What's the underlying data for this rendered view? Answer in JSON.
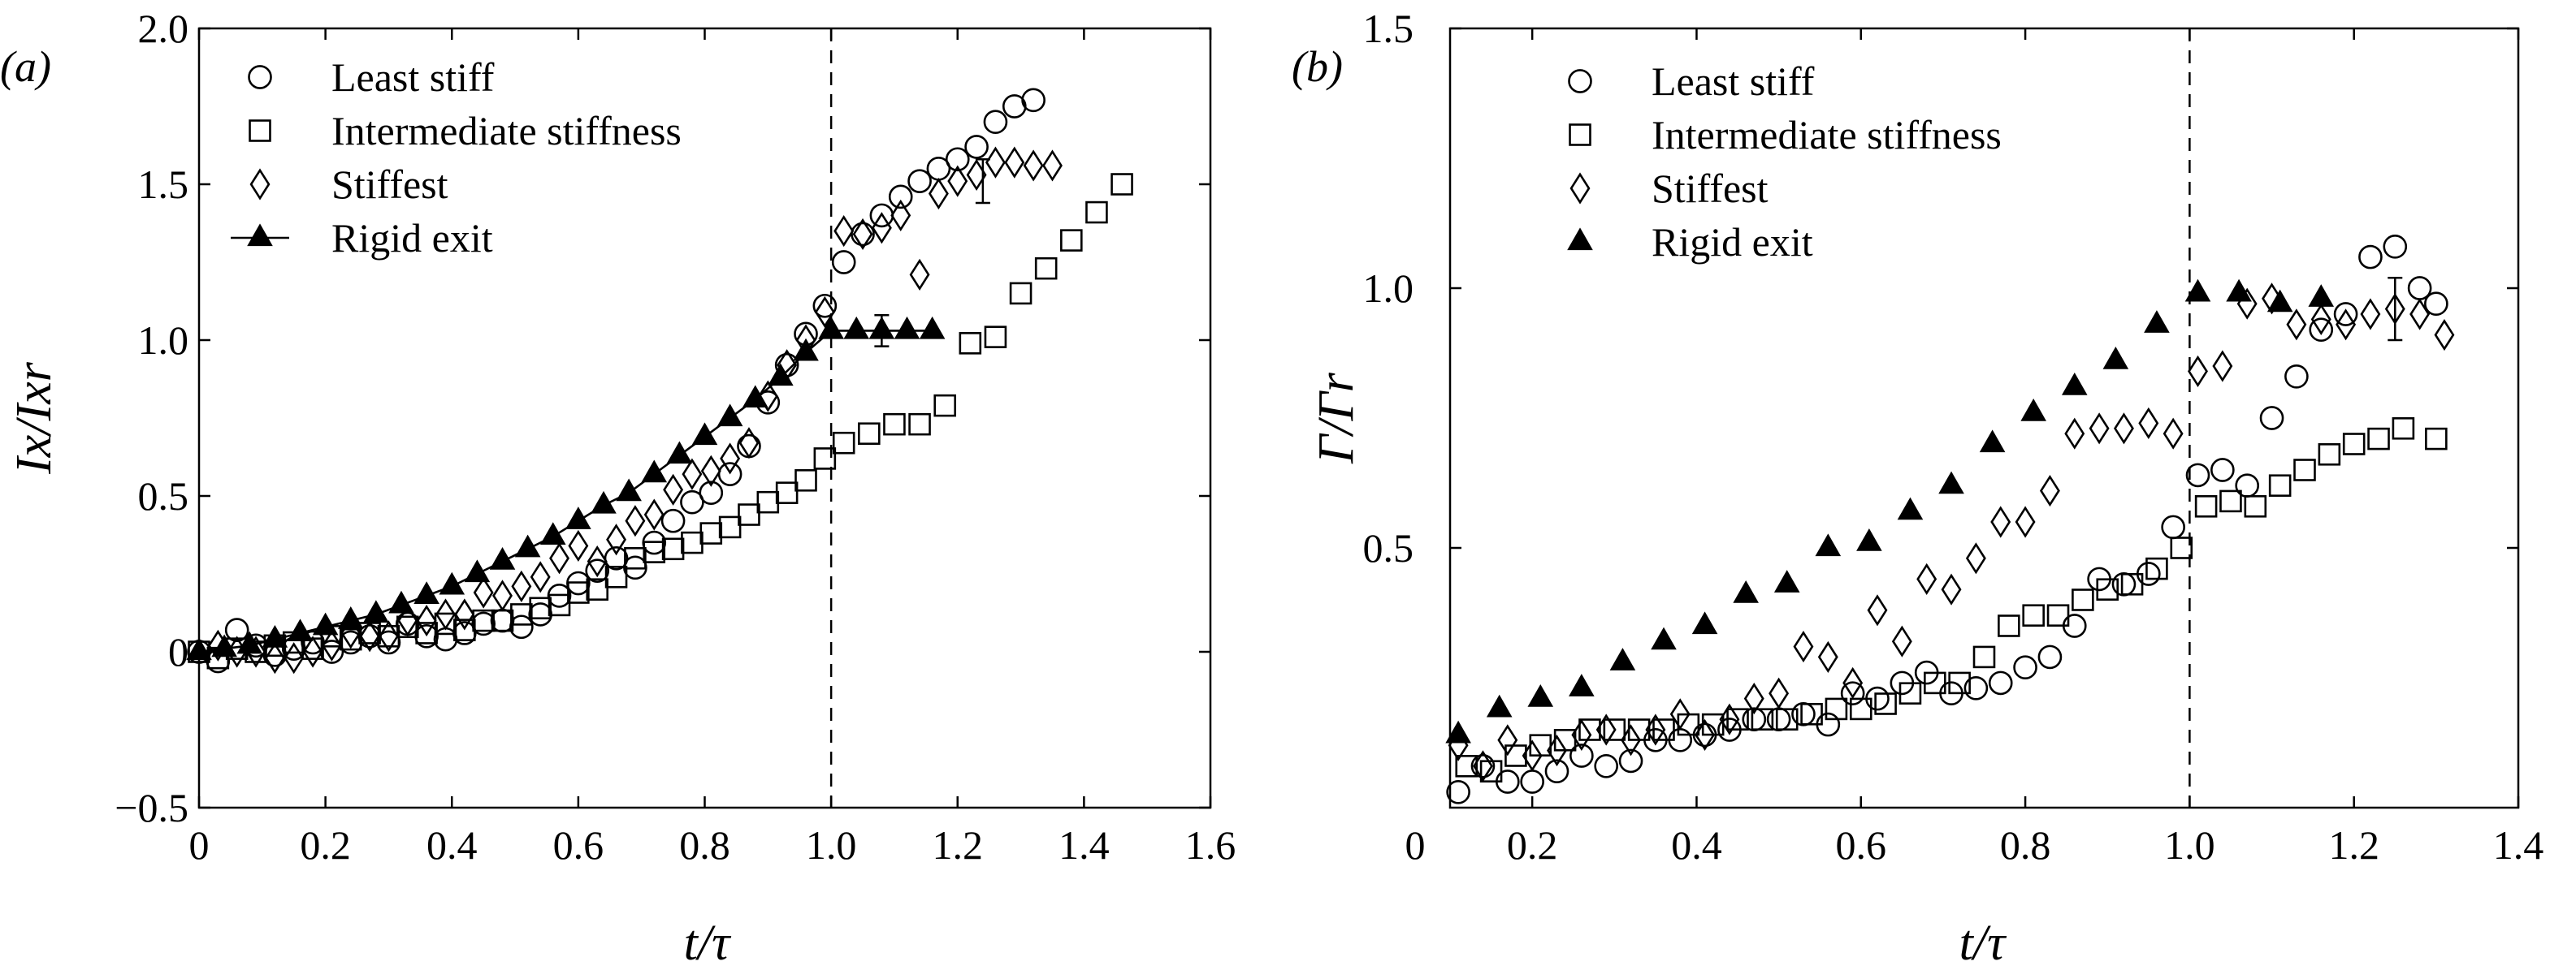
{
  "colors": {
    "ink": "#000000",
    "background": "#ffffff"
  },
  "chart_data": [
    {
      "type": "scatter",
      "panel_label": "(a)",
      "xlabel": "t/τ",
      "ylabel": "Ix/Ixr",
      "xlim": [
        0,
        1.6
      ],
      "ylim": [
        -0.5,
        2.0
      ],
      "xticks": [
        "0",
        "0.2",
        "0.4",
        "0.6",
        "0.8",
        "1.0",
        "1.2",
        "1.4",
        "1.6"
      ],
      "yticks": [
        "−0.5",
        "0",
        "0.5",
        "1.0",
        "1.5",
        "2.0"
      ],
      "vline_x": 1.0,
      "grid": false,
      "legend_position": "top-left",
      "series": [
        {
          "name": "Least stiff",
          "marker": "circle-open",
          "x": [
            0.0,
            0.03,
            0.06,
            0.09,
            0.12,
            0.15,
            0.18,
            0.21,
            0.24,
            0.27,
            0.3,
            0.33,
            0.36,
            0.39,
            0.42,
            0.45,
            0.48,
            0.51,
            0.54,
            0.57,
            0.6,
            0.63,
            0.66,
            0.69,
            0.72,
            0.75,
            0.78,
            0.81,
            0.84,
            0.87,
            0.9,
            0.93,
            0.96,
            0.99,
            1.02,
            1.05,
            1.08,
            1.11,
            1.14,
            1.17,
            1.2,
            1.23,
            1.26,
            1.29,
            1.32
          ],
          "y": [
            0.0,
            -0.03,
            0.07,
            0.02,
            -0.01,
            0.01,
            0.03,
            0.0,
            0.03,
            0.05,
            0.03,
            0.09,
            0.05,
            0.04,
            0.06,
            0.09,
            0.1,
            0.08,
            0.12,
            0.18,
            0.22,
            0.26,
            0.3,
            0.27,
            0.35,
            0.42,
            0.48,
            0.51,
            0.57,
            0.66,
            0.8,
            0.92,
            1.02,
            1.11,
            1.25,
            1.34,
            1.4,
            1.46,
            1.51,
            1.55,
            1.58,
            1.62,
            1.7,
            1.75,
            1.77
          ]
        },
        {
          "name": "Intermediate stiffness",
          "marker": "square-open",
          "x": [
            0.0,
            0.03,
            0.06,
            0.09,
            0.12,
            0.15,
            0.18,
            0.21,
            0.24,
            0.27,
            0.3,
            0.33,
            0.36,
            0.39,
            0.42,
            0.45,
            0.48,
            0.51,
            0.54,
            0.57,
            0.6,
            0.63,
            0.66,
            0.69,
            0.72,
            0.75,
            0.78,
            0.81,
            0.84,
            0.87,
            0.9,
            0.93,
            0.96,
            0.99,
            1.02,
            1.06,
            1.1,
            1.14,
            1.18,
            1.22,
            1.26,
            1.3,
            1.34,
            1.38,
            1.42,
            1.46
          ],
          "y": [
            0.0,
            -0.02,
            0.01,
            0.0,
            0.02,
            0.03,
            0.01,
            0.05,
            0.04,
            0.06,
            0.05,
            0.08,
            0.06,
            0.09,
            0.07,
            0.1,
            0.1,
            0.12,
            0.14,
            0.15,
            0.19,
            0.2,
            0.24,
            0.3,
            0.32,
            0.33,
            0.35,
            0.38,
            0.4,
            0.44,
            0.48,
            0.51,
            0.55,
            0.62,
            0.67,
            0.7,
            0.73,
            0.73,
            0.79,
            0.99,
            1.01,
            1.15,
            1.23,
            1.32,
            1.41,
            1.5
          ]
        },
        {
          "name": "Stiffest",
          "marker": "diamond-open",
          "x": [
            0.03,
            0.06,
            0.09,
            0.12,
            0.15,
            0.18,
            0.21,
            0.24,
            0.27,
            0.3,
            0.33,
            0.36,
            0.39,
            0.42,
            0.45,
            0.48,
            0.51,
            0.54,
            0.57,
            0.6,
            0.63,
            0.66,
            0.69,
            0.72,
            0.75,
            0.78,
            0.81,
            0.84,
            0.87,
            0.9,
            0.93,
            0.96,
            0.99,
            1.02,
            1.05,
            1.08,
            1.11,
            1.14,
            1.17,
            1.2,
            1.23,
            1.26,
            1.29,
            1.32,
            1.35
          ],
          "y": [
            0.02,
            0.0,
            0.0,
            -0.02,
            -0.02,
            0.0,
            0.02,
            0.06,
            0.05,
            0.05,
            0.1,
            0.1,
            0.12,
            0.12,
            0.19,
            0.18,
            0.21,
            0.24,
            0.3,
            0.34,
            0.29,
            0.36,
            0.42,
            0.44,
            0.52,
            0.57,
            0.58,
            0.62,
            0.67,
            0.82,
            0.92,
            1.0,
            1.09,
            1.35,
            1.34,
            1.36,
            1.4,
            1.21,
            1.47,
            1.51,
            1.53,
            1.57,
            1.57,
            1.56,
            1.56
          ]
        },
        {
          "name": "Rigid exit",
          "marker": "triangle-filled",
          "line": true,
          "x": [
            0.0,
            0.04,
            0.08,
            0.12,
            0.16,
            0.2,
            0.24,
            0.28,
            0.32,
            0.36,
            0.4,
            0.44,
            0.48,
            0.52,
            0.56,
            0.6,
            0.64,
            0.68,
            0.72,
            0.76,
            0.8,
            0.84,
            0.88,
            0.92,
            0.96,
            1.0,
            1.04,
            1.08,
            1.12,
            1.16
          ],
          "y": [
            0.0,
            0.01,
            0.02,
            0.04,
            0.06,
            0.08,
            0.1,
            0.12,
            0.15,
            0.18,
            0.21,
            0.25,
            0.29,
            0.33,
            0.37,
            0.42,
            0.47,
            0.51,
            0.57,
            0.63,
            0.69,
            0.75,
            0.81,
            0.88,
            0.96,
            1.03,
            1.03,
            1.03,
            1.03,
            1.03
          ]
        }
      ],
      "error_bars": [
        {
          "x": 1.08,
          "y": 1.03,
          "err": 0.05
        },
        {
          "x": 1.24,
          "y": 1.51,
          "err": 0.07
        }
      ]
    },
    {
      "type": "scatter",
      "panel_label": "(b)",
      "xlabel": "t/τ",
      "ylabel": "Γ/Γr",
      "xlim": [
        0.1,
        1.4
      ],
      "ylim": [
        0.0,
        1.5
      ],
      "xticks": [
        "0",
        "0.2",
        "0.4",
        "0.6",
        "0.8",
        "1.0",
        "1.2",
        "1.4"
      ],
      "yticks": [
        "0",
        "0.5",
        "1.0",
        "1.5"
      ],
      "vline_x": 1.0,
      "grid": false,
      "legend_position": "top-left",
      "series": [
        {
          "name": "Least stiff",
          "marker": "circle-open",
          "x": [
            0.11,
            0.14,
            0.17,
            0.2,
            0.23,
            0.26,
            0.29,
            0.32,
            0.35,
            0.38,
            0.41,
            0.44,
            0.47,
            0.5,
            0.53,
            0.56,
            0.59,
            0.62,
            0.65,
            0.68,
            0.71,
            0.74,
            0.77,
            0.8,
            0.83,
            0.86,
            0.89,
            0.92,
            0.95,
            0.98,
            1.01,
            1.04,
            1.07,
            1.1,
            1.13,
            1.16,
            1.19,
            1.22,
            1.25,
            1.28,
            1.3
          ],
          "y": [
            0.03,
            0.08,
            0.05,
            0.05,
            0.07,
            0.1,
            0.08,
            0.09,
            0.13,
            0.13,
            0.14,
            0.15,
            0.17,
            0.17,
            0.18,
            0.16,
            0.22,
            0.21,
            0.24,
            0.26,
            0.22,
            0.23,
            0.24,
            0.27,
            0.29,
            0.35,
            0.44,
            0.43,
            0.45,
            0.54,
            0.64,
            0.65,
            0.62,
            0.75,
            0.83,
            0.92,
            0.95,
            1.06,
            1.08,
            1.0,
            0.97
          ]
        },
        {
          "name": "Intermediate stiffness",
          "marker": "square-open",
          "x": [
            0.12,
            0.15,
            0.18,
            0.21,
            0.24,
            0.27,
            0.3,
            0.33,
            0.36,
            0.39,
            0.42,
            0.45,
            0.48,
            0.51,
            0.54,
            0.57,
            0.6,
            0.63,
            0.66,
            0.69,
            0.72,
            0.75,
            0.78,
            0.81,
            0.84,
            0.87,
            0.9,
            0.93,
            0.96,
            0.99,
            1.02,
            1.05,
            1.08,
            1.11,
            1.14,
            1.17,
            1.2,
            1.23,
            1.26,
            1.3
          ],
          "y": [
            0.08,
            0.07,
            0.1,
            0.12,
            0.13,
            0.15,
            0.15,
            0.15,
            0.15,
            0.16,
            0.16,
            0.17,
            0.17,
            0.17,
            0.18,
            0.19,
            0.19,
            0.2,
            0.22,
            0.24,
            0.24,
            0.29,
            0.35,
            0.37,
            0.37,
            0.4,
            0.42,
            0.43,
            0.46,
            0.5,
            0.58,
            0.59,
            0.58,
            0.62,
            0.65,
            0.68,
            0.7,
            0.71,
            0.73,
            0.71
          ]
        },
        {
          "name": "Stiffest",
          "marker": "diamond-open",
          "x": [
            0.11,
            0.14,
            0.17,
            0.2,
            0.23,
            0.26,
            0.29,
            0.32,
            0.35,
            0.38,
            0.41,
            0.44,
            0.47,
            0.5,
            0.53,
            0.56,
            0.59,
            0.62,
            0.65,
            0.68,
            0.71,
            0.74,
            0.77,
            0.8,
            0.83,
            0.86,
            0.89,
            0.92,
            0.95,
            0.98,
            1.01,
            1.04,
            1.07,
            1.1,
            1.13,
            1.16,
            1.19,
            1.22,
            1.25,
            1.28,
            1.31
          ],
          "y": [
            0.12,
            0.08,
            0.13,
            0.1,
            0.11,
            0.14,
            0.15,
            0.13,
            0.15,
            0.18,
            0.14,
            0.17,
            0.21,
            0.22,
            0.31,
            0.29,
            0.24,
            0.38,
            0.32,
            0.44,
            0.42,
            0.48,
            0.55,
            0.55,
            0.61,
            0.72,
            0.73,
            0.73,
            0.74,
            0.72,
            0.84,
            0.85,
            0.97,
            0.98,
            0.93,
            0.94,
            0.93,
            0.95,
            0.96,
            0.95,
            0.91
          ]
        },
        {
          "name": "Rigid exit",
          "marker": "triangle-filled",
          "x": [
            0.11,
            0.16,
            0.21,
            0.26,
            0.31,
            0.36,
            0.41,
            0.46,
            0.51,
            0.56,
            0.61,
            0.66,
            0.71,
            0.76,
            0.81,
            0.86,
            0.91,
            0.96,
            1.01,
            1.06,
            1.11,
            1.16
          ],
          "y": [
            0.14,
            0.19,
            0.21,
            0.23,
            0.28,
            0.32,
            0.35,
            0.41,
            0.43,
            0.5,
            0.51,
            0.57,
            0.62,
            0.7,
            0.76,
            0.81,
            0.86,
            0.93,
            0.99,
            0.99,
            0.97,
            0.98
          ]
        }
      ],
      "error_bars": [
        {
          "x": 1.25,
          "y": 0.96,
          "err": 0.06
        }
      ]
    }
  ]
}
